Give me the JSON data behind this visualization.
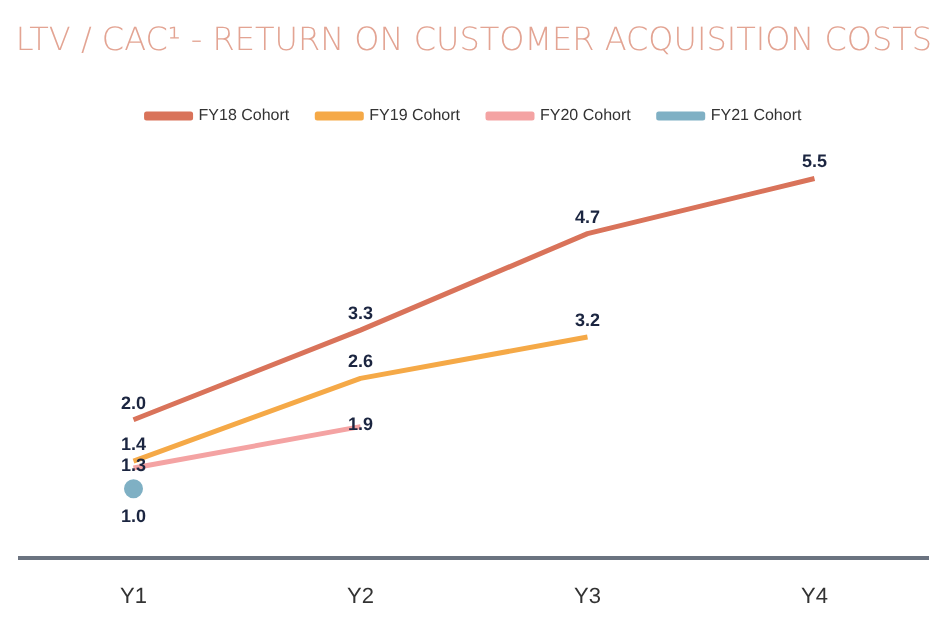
{
  "chart_data": {
    "type": "line",
    "title": "LTV / CAC¹ - RETURN ON CUSTOMER ACQUISITION COSTS",
    "categories": [
      "Y1",
      "Y2",
      "Y3",
      "Y4"
    ],
    "tick_labels": "x",
    "legend": "top",
    "marker": "none",
    "series": [
      {
        "name": "FY18 Cohort",
        "color": "#d9735a",
        "values": [
          2.0,
          3.3,
          4.7,
          5.5
        ],
        "value_labels": [
          "2.0",
          "3.3",
          "4.7",
          "5.5"
        ]
      },
      {
        "name": "FY19 Cohort",
        "color": "#f5a947",
        "values": [
          1.4,
          2.6,
          3.2,
          null
        ],
        "value_labels": [
          "1.4",
          "2.6",
          "3.2",
          null
        ]
      },
      {
        "name": "FY20 Cohort",
        "color": "#f4a3a3",
        "values": [
          1.3,
          1.9,
          null,
          null
        ],
        "value_labels": [
          "1.3",
          "1.9",
          null,
          null
        ]
      },
      {
        "name": "FY21 Cohort",
        "color": "#7fb0c4",
        "values": [
          1.0,
          null,
          null,
          null
        ],
        "value_labels": [
          "1.0",
          null,
          null,
          null
        ],
        "marker": "circle"
      }
    ]
  }
}
